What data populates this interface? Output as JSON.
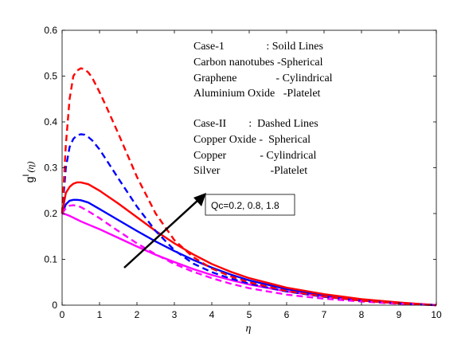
{
  "chart_data": {
    "type": "line",
    "xlabel": "η",
    "ylabel": "g",
    "ylabel_sup": "I",
    "ylabel_arg": "(η)",
    "xlim": [
      0,
      10
    ],
    "ylim": [
      0,
      0.6
    ],
    "xticks": [
      "0",
      "1",
      "2",
      "3",
      "4",
      "5",
      "6",
      "7",
      "8",
      "9",
      "10"
    ],
    "yticks": [
      "0",
      "0.1",
      "0.2",
      "0.3",
      "0.4",
      "0.5",
      "0.6"
    ],
    "grid": false,
    "annotation_lines": [
      "Case-1               : Soild Lines",
      "Carbon nanotubes -Spherical",
      "Graphene              - Cylindrical",
      "Aluminium Oxide   -Platelet",
      "",
      "Case-II        :  Dashed Lines",
      "Copper Oxide -  Spherical",
      "Copper            - Cylindrical",
      "Silver                  -Platelet"
    ],
    "arrow_label": "Qc=0.2, 0.8, 1.8",
    "series": [
      {
        "color": "#ff00ff",
        "dash": false,
        "x": [
          0,
          0.1,
          0.2,
          0.3,
          0.4,
          0.5,
          0.7,
          1.0,
          1.5,
          2,
          2.5,
          3,
          3.5,
          4,
          4.5,
          5,
          6,
          7,
          8,
          9,
          10
        ],
        "y": [
          0.2,
          0.198,
          0.195,
          0.191,
          0.187,
          0.183,
          0.176,
          0.166,
          0.147,
          0.128,
          0.11,
          0.094,
          0.079,
          0.066,
          0.055,
          0.045,
          0.03,
          0.019,
          0.011,
          0.005,
          0.0
        ]
      },
      {
        "color": "#0000ff",
        "dash": false,
        "x": [
          0,
          0.1,
          0.2,
          0.3,
          0.4,
          0.5,
          0.7,
          1.0,
          1.5,
          2,
          2.5,
          3,
          3.5,
          4,
          4.5,
          5,
          6,
          7,
          8,
          9,
          10
        ],
        "y": [
          0.2,
          0.22,
          0.228,
          0.23,
          0.23,
          0.229,
          0.224,
          0.21,
          0.186,
          0.162,
          0.139,
          0.118,
          0.099,
          0.082,
          0.067,
          0.054,
          0.035,
          0.022,
          0.012,
          0.005,
          0.0
        ]
      },
      {
        "color": "#ff0000",
        "dash": false,
        "x": [
          0,
          0.1,
          0.2,
          0.3,
          0.4,
          0.5,
          0.7,
          1.0,
          1.5,
          2,
          2.5,
          3,
          3.5,
          4,
          4.5,
          5,
          6,
          7,
          8,
          9,
          10
        ],
        "y": [
          0.2,
          0.245,
          0.258,
          0.265,
          0.268,
          0.268,
          0.264,
          0.25,
          0.222,
          0.192,
          0.162,
          0.135,
          0.111,
          0.09,
          0.073,
          0.059,
          0.038,
          0.024,
          0.013,
          0.006,
          0.0
        ]
      },
      {
        "color": "#ff00ff",
        "dash": true,
        "x": [
          0,
          0.1,
          0.2,
          0.3,
          0.4,
          0.5,
          0.7,
          1.0,
          1.5,
          2,
          2.5,
          3,
          3.5,
          4,
          4.5,
          5,
          6,
          7,
          8,
          9,
          10
        ],
        "y": [
          0.2,
          0.212,
          0.217,
          0.218,
          0.217,
          0.214,
          0.205,
          0.19,
          0.162,
          0.135,
          0.111,
          0.09,
          0.073,
          0.059,
          0.047,
          0.037,
          0.023,
          0.014,
          0.008,
          0.003,
          0.0
        ]
      },
      {
        "color": "#0000ff",
        "dash": true,
        "x": [
          0,
          0.1,
          0.2,
          0.3,
          0.4,
          0.5,
          0.6,
          0.7,
          0.8,
          1.0,
          1.2,
          1.5,
          2,
          2.5,
          3,
          3.5,
          4,
          4.5,
          5,
          6,
          7,
          8,
          9,
          10
        ],
        "y": [
          0.2,
          0.3,
          0.345,
          0.363,
          0.371,
          0.373,
          0.372,
          0.367,
          0.36,
          0.34,
          0.315,
          0.277,
          0.215,
          0.162,
          0.12,
          0.091,
          0.072,
          0.058,
          0.047,
          0.03,
          0.018,
          0.01,
          0.004,
          0.0
        ]
      },
      {
        "color": "#ff0000",
        "dash": true,
        "x": [
          0,
          0.1,
          0.2,
          0.3,
          0.4,
          0.5,
          0.6,
          0.7,
          0.8,
          1.0,
          1.2,
          1.5,
          2,
          2.5,
          3,
          3.5,
          4,
          4.5,
          5,
          6,
          7,
          8,
          9,
          10
        ],
        "y": [
          0.2,
          0.35,
          0.45,
          0.5,
          0.512,
          0.517,
          0.515,
          0.508,
          0.497,
          0.465,
          0.43,
          0.375,
          0.28,
          0.2,
          0.142,
          0.105,
          0.08,
          0.063,
          0.05,
          0.031,
          0.019,
          0.01,
          0.004,
          0.0
        ]
      }
    ]
  }
}
